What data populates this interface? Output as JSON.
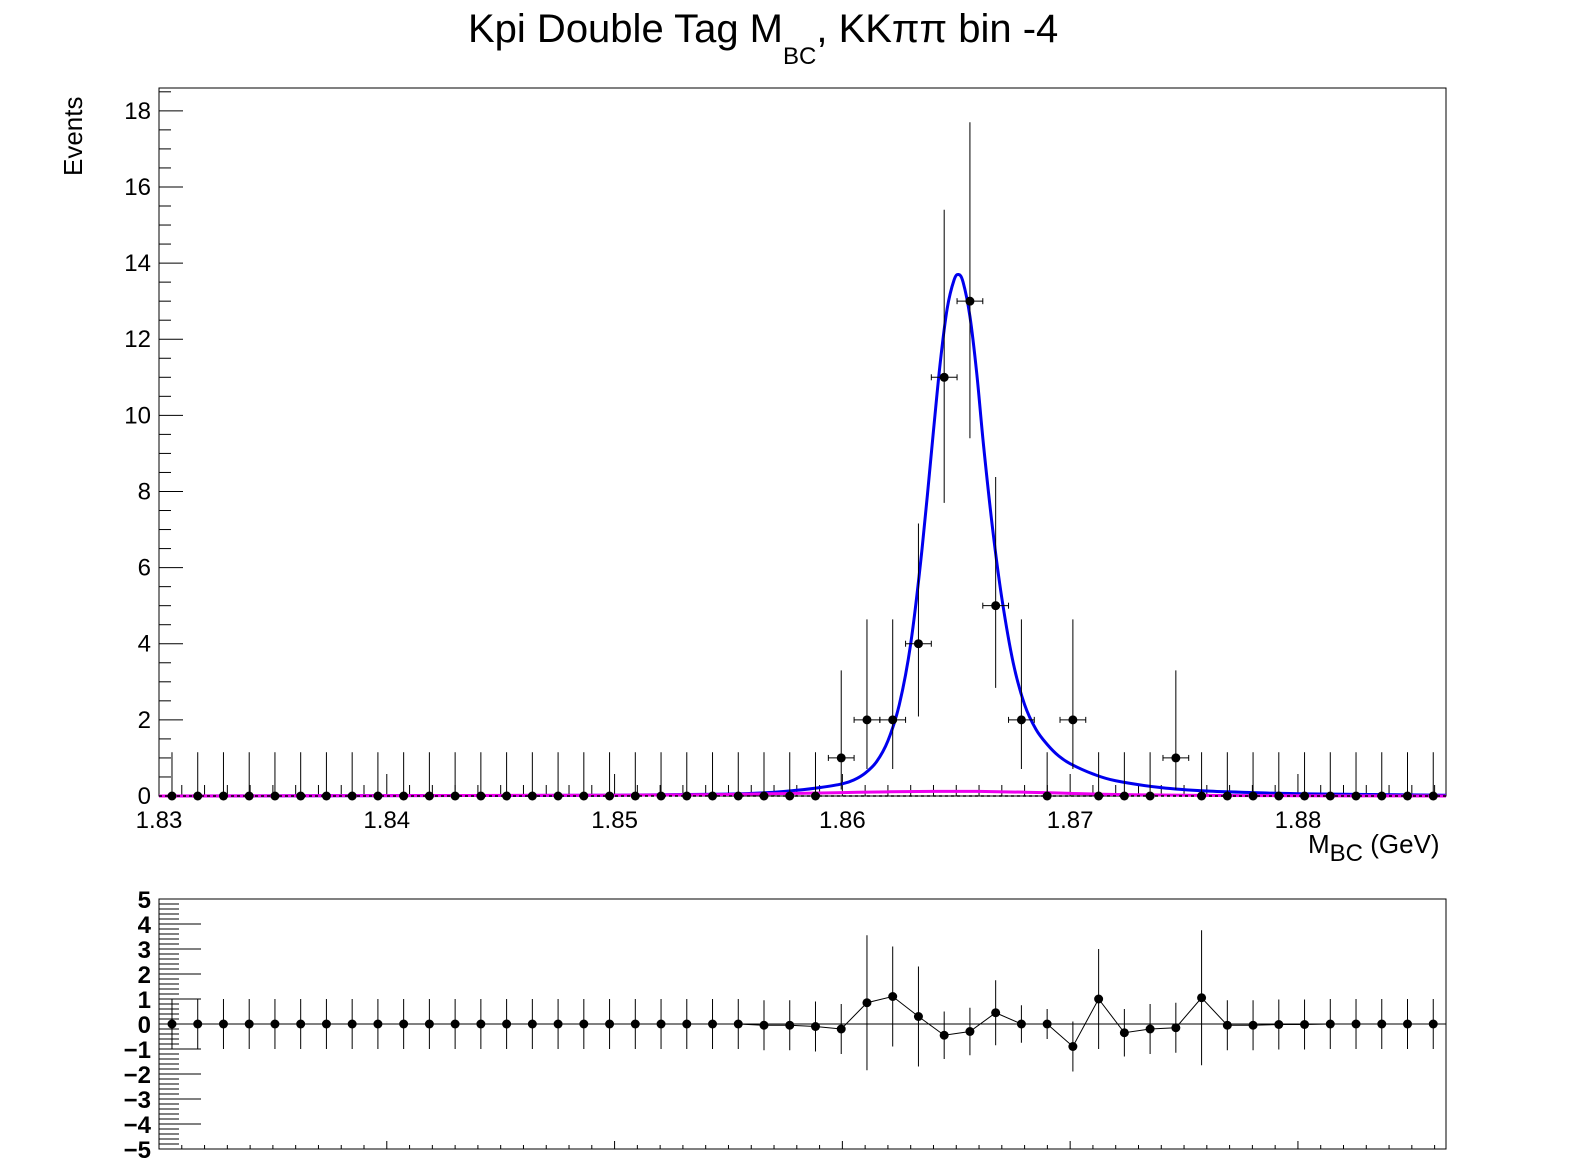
{
  "chart_data": [
    {
      "type": "scatter",
      "title": {
        "main": "Kpi Double Tag M",
        "subscript": "BC",
        "suffix": ", KKππ bin -4"
      },
      "xlabel": {
        "main": "M",
        "subscript": "BC",
        "suffix": " (GeV)"
      },
      "ylabel": "Events",
      "xlim": [
        1.83,
        1.8865
      ],
      "ylim": [
        0,
        18.6
      ],
      "x_ticks": [
        "1.83",
        "1.84",
        "1.85",
        "1.86",
        "1.87",
        "1.88"
      ],
      "y_ticks": [
        "0",
        "2",
        "4",
        "6",
        "8",
        "10",
        "12",
        "14",
        "16",
        "18"
      ],
      "bin_width": 0.00113,
      "data_points": {
        "x": [
          1.83057,
          1.8317,
          1.83283,
          1.83396,
          1.83509,
          1.83622,
          1.83735,
          1.83848,
          1.83961,
          1.84074,
          1.84187,
          1.843,
          1.84413,
          1.84526,
          1.84639,
          1.84752,
          1.84865,
          1.84978,
          1.85091,
          1.85204,
          1.85317,
          1.8543,
          1.85543,
          1.85656,
          1.85769,
          1.85882,
          1.85995,
          1.86108,
          1.86221,
          1.86334,
          1.86447,
          1.8656,
          1.86673,
          1.86786,
          1.86899,
          1.87012,
          1.87125,
          1.87238,
          1.87351,
          1.87464,
          1.87577,
          1.8769,
          1.87803,
          1.87916,
          1.88029,
          1.88142,
          1.88255,
          1.88368,
          1.88481,
          1.88594
        ],
        "y": [
          0,
          0,
          0,
          0,
          0,
          0,
          0,
          0,
          0,
          0,
          0,
          0,
          0,
          0,
          0,
          0,
          0,
          0,
          0,
          0,
          0,
          0,
          0,
          0,
          0,
          0,
          1,
          2,
          2,
          4,
          11,
          13,
          5,
          2,
          0,
          2,
          0,
          0,
          0,
          1,
          0,
          0,
          0,
          0,
          0,
          0,
          0,
          0,
          0,
          0
        ],
        "err_low": [
          0,
          0,
          0,
          0,
          0,
          0,
          0,
          0,
          0,
          0,
          0,
          0,
          0,
          0,
          0,
          0,
          0,
          0,
          0,
          0,
          0,
          0,
          0,
          0,
          0,
          0,
          0.83,
          1.29,
          1.29,
          1.91,
          3.3,
          3.6,
          2.16,
          1.29,
          0,
          1.29,
          0,
          0,
          0,
          0.83,
          0,
          0,
          0,
          0,
          0,
          0,
          0,
          0,
          0,
          0
        ],
        "err_high": [
          1.15,
          1.15,
          1.15,
          1.15,
          1.15,
          1.15,
          1.15,
          1.15,
          1.15,
          1.15,
          1.15,
          1.15,
          1.15,
          1.15,
          1.15,
          1.15,
          1.15,
          1.15,
          1.15,
          1.15,
          1.15,
          1.15,
          1.15,
          1.15,
          1.15,
          1.15,
          2.3,
          2.64,
          2.64,
          3.16,
          4.4,
          4.7,
          3.38,
          2.64,
          1.15,
          2.64,
          1.15,
          1.15,
          1.15,
          2.3,
          1.15,
          1.15,
          1.15,
          1.15,
          1.15,
          1.15,
          1.15,
          1.15,
          1.15,
          1.15
        ]
      },
      "series": [
        {
          "color": "#0000ee",
          "x": [
            1.83,
            1.84,
            1.85,
            1.855,
            1.857,
            1.858,
            1.859,
            1.86,
            1.8605,
            1.861,
            1.8615,
            1.862,
            1.8625,
            1.863,
            1.8635,
            1.864,
            1.8643,
            1.8646,
            1.8649,
            1.8651,
            1.8653,
            1.8656,
            1.8659,
            1.8662,
            1.8666,
            1.867,
            1.8675,
            1.868,
            1.8685,
            1.869,
            1.8695,
            1.87,
            1.871,
            1.872,
            1.874,
            1.876,
            1.878,
            1.88,
            1.8865
          ],
          "y": [
            0.0,
            0.01,
            0.02,
            0.05,
            0.1,
            0.15,
            0.22,
            0.32,
            0.42,
            0.6,
            0.9,
            1.45,
            2.4,
            4.0,
            6.5,
            9.6,
            11.4,
            12.8,
            13.55,
            13.7,
            13.5,
            12.6,
            11.1,
            9.2,
            7.0,
            5.2,
            3.5,
            2.4,
            1.75,
            1.35,
            1.05,
            0.85,
            0.58,
            0.4,
            0.22,
            0.13,
            0.09,
            0.06,
            0.02
          ]
        },
        {
          "color": "#ee00ee",
          "x": [
            1.83,
            1.84,
            1.85,
            1.855,
            1.858,
            1.86,
            1.862,
            1.864,
            1.866,
            1.868,
            1.87,
            1.872,
            1.875,
            1.878,
            1.8865
          ],
          "y": [
            0.0,
            0.01,
            0.02,
            0.04,
            0.07,
            0.09,
            0.11,
            0.12,
            0.12,
            0.1,
            0.07,
            0.04,
            0.02,
            0.01,
            0.0
          ]
        }
      ]
    },
    {
      "type": "scatter",
      "xlim": [
        1.83,
        1.8865
      ],
      "ylim": [
        -5,
        5
      ],
      "y_ticks": [
        "5",
        "4",
        "3",
        "2",
        "1",
        "0",
        "−1",
        "−2",
        "−3",
        "−4",
        "−5"
      ],
      "x": [
        1.83057,
        1.8317,
        1.83283,
        1.83396,
        1.83509,
        1.83622,
        1.83735,
        1.83848,
        1.83961,
        1.84074,
        1.84187,
        1.843,
        1.84413,
        1.84526,
        1.84639,
        1.84752,
        1.84865,
        1.84978,
        1.85091,
        1.85204,
        1.85317,
        1.8543,
        1.85543,
        1.85656,
        1.85769,
        1.85882,
        1.85995,
        1.86108,
        1.86221,
        1.86334,
        1.86447,
        1.8656,
        1.86673,
        1.86786,
        1.86899,
        1.87012,
        1.87125,
        1.87238,
        1.87351,
        1.87464,
        1.87577,
        1.8769,
        1.87803,
        1.87916,
        1.88029,
        1.88142,
        1.88255,
        1.88368,
        1.88481,
        1.88594
      ],
      "y": [
        0,
        0,
        0,
        0,
        0,
        0,
        0,
        0,
        0,
        0,
        0,
        0,
        0,
        0,
        0,
        0,
        0,
        0,
        0,
        0,
        0,
        0,
        0,
        -0.05,
        -0.05,
        -0.1,
        -0.2,
        0.85,
        1.1,
        0.3,
        -0.45,
        -0.3,
        0.45,
        0.0,
        0.0,
        -0.9,
        1.0,
        -0.35,
        -0.2,
        -0.15,
        1.05,
        -0.05,
        -0.05,
        -0.02,
        -0.02,
        0,
        0,
        0,
        0,
        0
      ],
      "err": [
        1,
        1,
        1,
        1,
        1,
        1,
        1,
        1,
        1,
        1,
        1,
        1,
        1,
        1,
        1,
        1,
        1,
        1,
        1,
        1,
        1,
        1,
        1,
        1,
        1,
        1,
        1,
        2.7,
        2.0,
        2.0,
        0.95,
        0.95,
        1.3,
        0.75,
        0.6,
        1.0,
        2.0,
        0.95,
        1.0,
        1.0,
        2.7,
        1.0,
        1.0,
        1.0,
        1.0,
        1,
        1,
        1,
        1,
        1
      ]
    }
  ]
}
